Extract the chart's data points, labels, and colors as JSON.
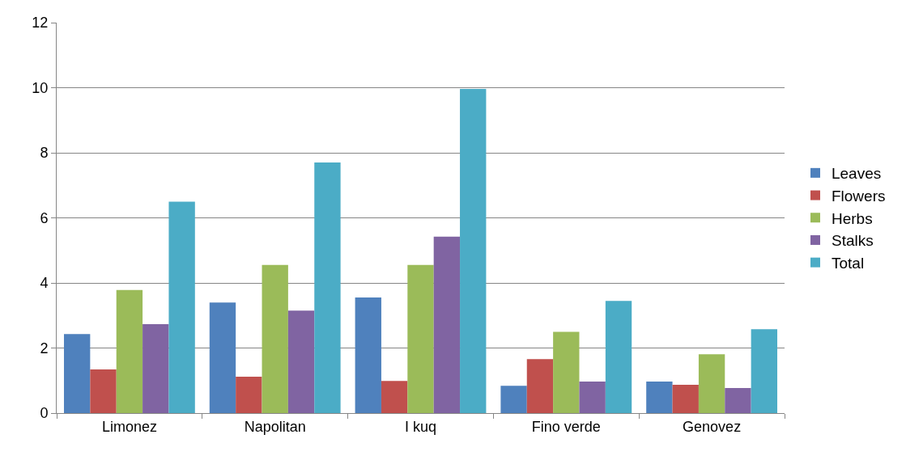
{
  "chart_data": {
    "type": "bar",
    "categories": [
      "Limonez",
      "Napolitan",
      "I kuq",
      "Fino verde",
      "Genovez"
    ],
    "series": [
      {
        "name": "Leaves",
        "color": "#4f81bd",
        "values": [
          2.43,
          3.4,
          3.55,
          0.84,
          0.97
        ]
      },
      {
        "name": "Flowers",
        "color": "#c0504d",
        "values": [
          1.34,
          1.12,
          0.99,
          1.66,
          0.87
        ]
      },
      {
        "name": "Herbs",
        "color": "#9bbb59",
        "values": [
          3.78,
          4.55,
          4.55,
          2.5,
          1.81
        ]
      },
      {
        "name": "Stalks",
        "color": "#8064a2",
        "values": [
          2.73,
          3.15,
          5.42,
          0.97,
          0.77
        ]
      },
      {
        "name": "Total",
        "color": "#4bacc6",
        "values": [
          6.5,
          7.7,
          9.96,
          3.45,
          2.58
        ]
      }
    ],
    "ylim": [
      0,
      12
    ],
    "yticks": [
      0,
      2,
      4,
      6,
      8,
      10,
      12
    ],
    "grid": "y",
    "legend": "right"
  }
}
